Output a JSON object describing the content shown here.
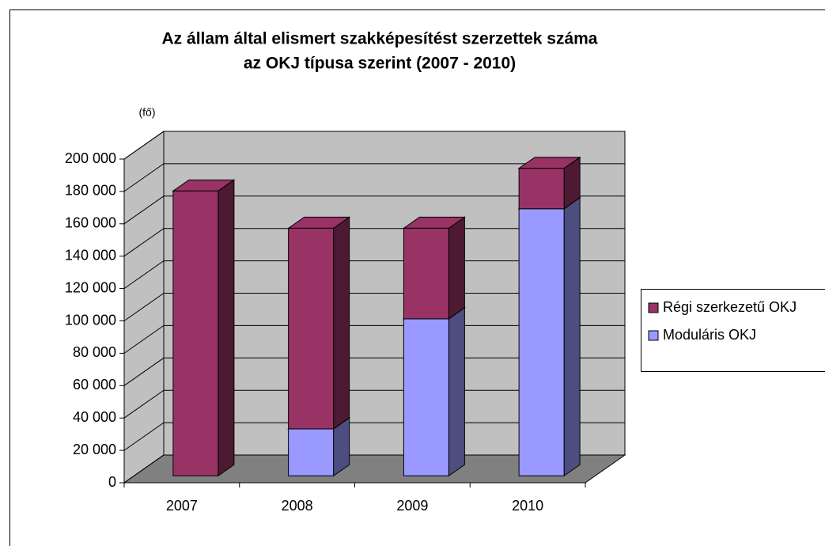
{
  "chart_data": {
    "type": "bar3d_stacked",
    "title": [
      "Az állam által elismert szakképesítést szerzettek száma",
      "az OKJ típusa szerint (2007 - 2010)"
    ],
    "y_unit": "(fő)",
    "categories": [
      "2007",
      "2008",
      "2009",
      "2010"
    ],
    "series": [
      {
        "name": "Moduláris OKJ",
        "color": "#9999ff",
        "side_color": "#4d4d80",
        "values": [
          0,
          29000,
          97000,
          165000
        ]
      },
      {
        "name": "Régi szerkezetű OKJ",
        "color": "#993366",
        "side_color": "#4d1933",
        "values": [
          176000,
          124000,
          56000,
          25000
        ]
      }
    ],
    "ylim": [
      0,
      200000
    ],
    "yticks": [
      {
        "value": 0,
        "label": "0"
      },
      {
        "value": 20000,
        "label": "20 000"
      },
      {
        "value": 40000,
        "label": "40 000"
      },
      {
        "value": 60000,
        "label": "60 000"
      },
      {
        "value": 80000,
        "label": "80 000"
      },
      {
        "value": 100000,
        "label": "100 000"
      },
      {
        "value": 120000,
        "label": "120 000"
      },
      {
        "value": 140000,
        "label": "140 000"
      },
      {
        "value": 160000,
        "label": "160 000"
      },
      {
        "value": 180000,
        "label": "180 000"
      },
      {
        "value": 200000,
        "label": "200 000"
      }
    ],
    "grid": true,
    "legend": "right"
  }
}
